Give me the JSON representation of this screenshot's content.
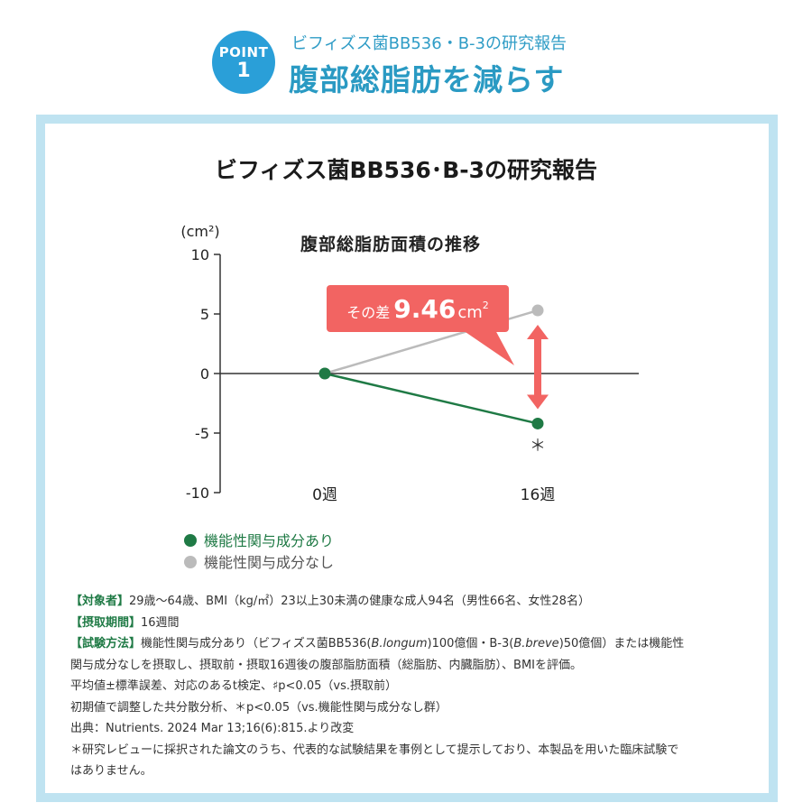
{
  "header": {
    "badge_word": "POINT",
    "badge_number": "1",
    "subtitle": "ビフィズス菌BB536・B-3の研究報告",
    "title": "腹部総脂肪を減らす"
  },
  "panel": {
    "title": "ビフィズス菌BB536･B-3の研究報告"
  },
  "chart_data": {
    "type": "line",
    "title": "腹部総脂肪面積の推移",
    "ylabel": "(cm²)",
    "xlabel": "",
    "categories": [
      "0週",
      "16週"
    ],
    "ylim": [
      -10,
      10
    ],
    "yticks": [
      10,
      5,
      0,
      -5,
      -10
    ],
    "series": [
      {
        "name": "機能性関与成分あり",
        "values": [
          0,
          -4.2
        ],
        "color": "#1f7a45"
      },
      {
        "name": "機能性関与成分なし",
        "values": [
          0,
          5.3
        ],
        "color": "#bbbbbb"
      }
    ],
    "annotation": {
      "prefix": "その差",
      "value": "9.46",
      "unit": "cm",
      "sup": "2",
      "color": "#f26462"
    },
    "significance_mark": "＊",
    "grid": false,
    "legend_position": "bottom-left"
  },
  "notes": {
    "subjects_label": "【対象者】",
    "subjects_text": "29歳～64歳、BMI（kg/㎡）23以上30未満の健康な成人94名（男性66名、女性28名）",
    "period_label": "【摂取期間】",
    "period_text": "16週間",
    "method_label": "【試験方法】",
    "method_text_1": "機能性関与成分あり（ビフィズス菌BB536(",
    "method_longum": "B.longum",
    "method_text_2": ")100億個・B-3(",
    "method_breve": "B.breve",
    "method_text_3": ")50億個）または機能性",
    "method_text_4": "関与成分なしを摂取し、摂取前・摂取16週後の腹部脂肪面積（総脂肪、内臓脂肪）、BMIを評価。",
    "stat_1": "平均値±標準誤差、対応のあるt検定、♯p<0.05（vs.摂取前）",
    "stat_2": "初期値で調整した共分散分析、＊p<0.05（vs.機能性関与成分なし群）",
    "source": "出典：Nutrients. 2024 Mar 13;16(6):815.より改変",
    "disclaimer_1": "＊研究レビューに採択された論文のうち、代表的な試験結果を事例として提示しており、本製品を用いた臨床試験で",
    "disclaimer_2": "はありません。"
  }
}
